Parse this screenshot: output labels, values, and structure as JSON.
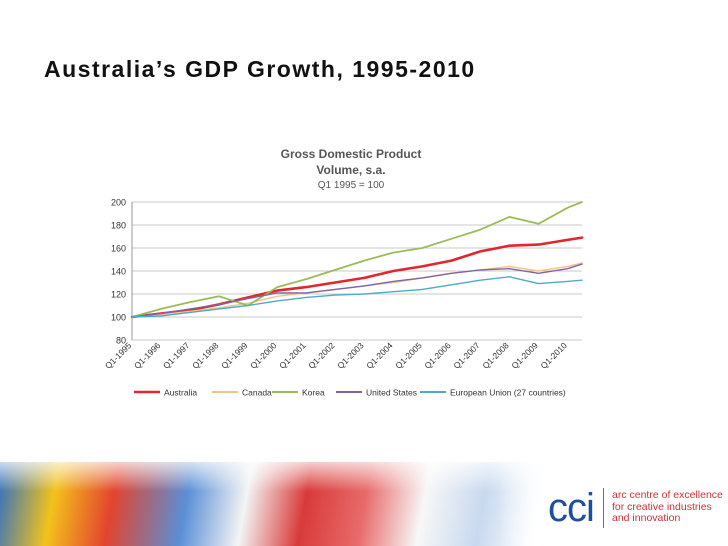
{
  "slide": {
    "title": "Australia’s GDP Growth, 1995-2010"
  },
  "chart_data": {
    "type": "line",
    "title": "Gross Domestic Product",
    "subtitle": "Volume, s.a.",
    "subtitle2": "Q1 1995 = 100",
    "xlabel": "",
    "ylabel": "",
    "ylim": [
      80,
      200
    ],
    "yticks": [
      "80",
      "100",
      "120",
      "140",
      "160",
      "180",
      "200"
    ],
    "x": [
      1995,
      1996,
      1997,
      1998,
      1999,
      2000,
      2001,
      2002,
      2003,
      2004,
      2005,
      2006,
      2007,
      2008,
      2009,
      2010,
      2010.5
    ],
    "categories": [
      "Q1-1995",
      "Q1-1996",
      "Q1-1997",
      "Q1-1998",
      "Q1-1999",
      "Q1-2000",
      "Q1-2001",
      "Q1-2002",
      "Q1-2003",
      "Q1-2004",
      "Q1-2005",
      "Q1-2006",
      "Q1-2007",
      "Q1-2008",
      "Q1-2009",
      "Q1-2010"
    ],
    "grid": true,
    "legend_position": "bottom",
    "series": [
      {
        "name": "Australia",
        "color": "#e3262e",
        "width": 2.6,
        "values": [
          100,
          103,
          106,
          111,
          117,
          123,
          126,
          130,
          134,
          140,
          144,
          149,
          157,
          162,
          163,
          167,
          169
        ]
      },
      {
        "name": "Canada",
        "color": "#f6c28b",
        "width": 1.4,
        "values": [
          100,
          102,
          105,
          108,
          112,
          118,
          121,
          124,
          127,
          130,
          134,
          138,
          141,
          144,
          140,
          144,
          147
        ]
      },
      {
        "name": "Korea",
        "color": "#9bbb59",
        "width": 1.8,
        "values": [
          100,
          107,
          113,
          118,
          110,
          126,
          133,
          141,
          149,
          156,
          160,
          168,
          176,
          187,
          181,
          195,
          200
        ]
      },
      {
        "name": "United States",
        "color": "#8064a2",
        "width": 1.4,
        "values": [
          100,
          103,
          107,
          111,
          116,
          121,
          121,
          124,
          127,
          131,
          134,
          138,
          141,
          142,
          138,
          142,
          146
        ]
      },
      {
        "name": "European Union (27 countries)",
        "color": "#4bacc6",
        "width": 1.4,
        "values": [
          100,
          101,
          104,
          107,
          110,
          114,
          117,
          119,
          120,
          122,
          124,
          128,
          132,
          135,
          129,
          131,
          132
        ]
      }
    ]
  },
  "footer": {
    "logo_text": "cci",
    "tagline": [
      "arc centre of excellence",
      "for creative industries",
      "and innovation"
    ]
  }
}
